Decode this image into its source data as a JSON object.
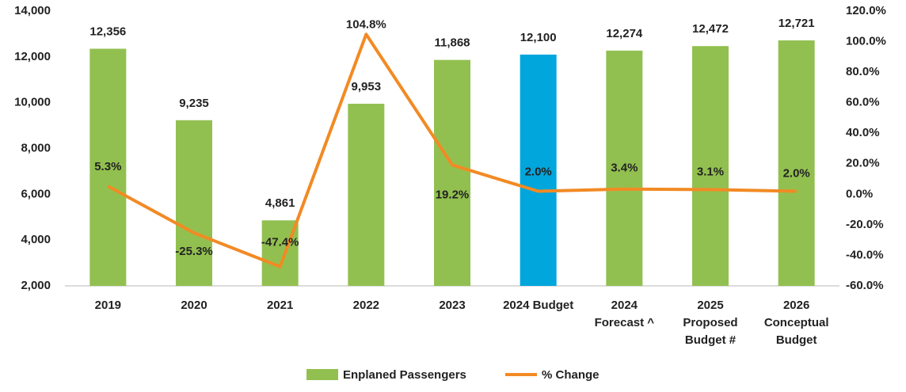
{
  "chart_data": {
    "type": "bar-line",
    "categories": [
      [
        "2019"
      ],
      [
        "2020"
      ],
      [
        "2021"
      ],
      [
        "2022"
      ],
      [
        "2023"
      ],
      [
        "2024 Budget"
      ],
      [
        "2024",
        "Forecast ^"
      ],
      [
        "2025",
        "Proposed",
        "Budget #"
      ],
      [
        "2026",
        "Conceptual",
        "Budget"
      ]
    ],
    "series": [
      {
        "name": "Enplaned Passengers",
        "type": "bar",
        "color": "#92c050",
        "colors": [
          "#92c050",
          "#92c050",
          "#92c050",
          "#92c050",
          "#92c050",
          "#00a6dc",
          "#92c050",
          "#92c050",
          "#92c050"
        ],
        "values": [
          12356,
          9235,
          4861,
          9953,
          11868,
          12100,
          12274,
          12472,
          12721
        ],
        "value_labels": [
          "12,356",
          "9,235",
          "4,861",
          "9,953",
          "11,868",
          "12,100",
          "12,274",
          "12,472",
          "12,721"
        ]
      },
      {
        "name": "% Change",
        "type": "line",
        "axis": "y2",
        "color": "#f28a24",
        "values": [
          5.3,
          -25.3,
          -47.4,
          104.8,
          19.2,
          2.0,
          3.4,
          3.1,
          2.0
        ],
        "value_labels": [
          "5.3%",
          "-25.3%",
          "-47.4%",
          "104.8%",
          "19.2%",
          "2.0%",
          "3.4%",
          "3.1%",
          "2.0%"
        ]
      }
    ],
    "ylim": [
      2000,
      14000
    ],
    "yticks": [
      {
        "value": 2000,
        "label": "2,000"
      },
      {
        "value": 4000,
        "label": "4,000"
      },
      {
        "value": 6000,
        "label": "6,000"
      },
      {
        "value": 8000,
        "label": "8,000"
      },
      {
        "value": 10000,
        "label": "10,000"
      },
      {
        "value": 12000,
        "label": "12,000"
      },
      {
        "value": 14000,
        "label": "14,000"
      }
    ],
    "y2lim": [
      -60,
      120
    ],
    "y2ticks": [
      {
        "value": -60,
        "label": "-60.0%"
      },
      {
        "value": -40,
        "label": "-40.0%"
      },
      {
        "value": -20,
        "label": "-20.0%"
      },
      {
        "value": 0,
        "label": "0.0%"
      },
      {
        "value": 20,
        "label": "20.0%"
      },
      {
        "value": 40,
        "label": "40.0%"
      },
      {
        "value": 60,
        "label": "60.0%"
      },
      {
        "value": 80,
        "label": "80.0%"
      },
      {
        "value": 100,
        "label": "100.0%"
      },
      {
        "value": 120,
        "label": "120.0%"
      }
    ],
    "grid": false,
    "legend": "bottom"
  }
}
